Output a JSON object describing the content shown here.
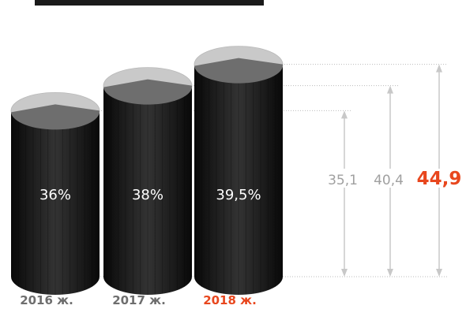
{
  "chart_data": {
    "type": "bar",
    "style": "3d-cylinder",
    "categories": [
      "2016 ж.",
      "2017 ж.",
      "2018 ж."
    ],
    "inner_labels": [
      "36%",
      "38%",
      "39,5%"
    ],
    "values": [
      35.1,
      40.4,
      44.9
    ],
    "value_labels": [
      "35,1",
      "40,4",
      "44,9"
    ],
    "highlight_index": 2,
    "ylim": [
      0,
      44.9
    ],
    "title": "",
    "xlabel": "",
    "ylabel": "",
    "grid": false,
    "colors": {
      "cylinder_body": "#1e1e1e",
      "cylinder_top": "#c9c9c9",
      "cylinder_top_wedge": "#6e6e6e",
      "arrow": "#c8c8c8",
      "dotted_line": "#bbbbbb",
      "value_label": "#a0a0a0",
      "highlight": "#e8471e",
      "category_label": "#6e6e6e",
      "inner_label": "#ffffff"
    }
  }
}
